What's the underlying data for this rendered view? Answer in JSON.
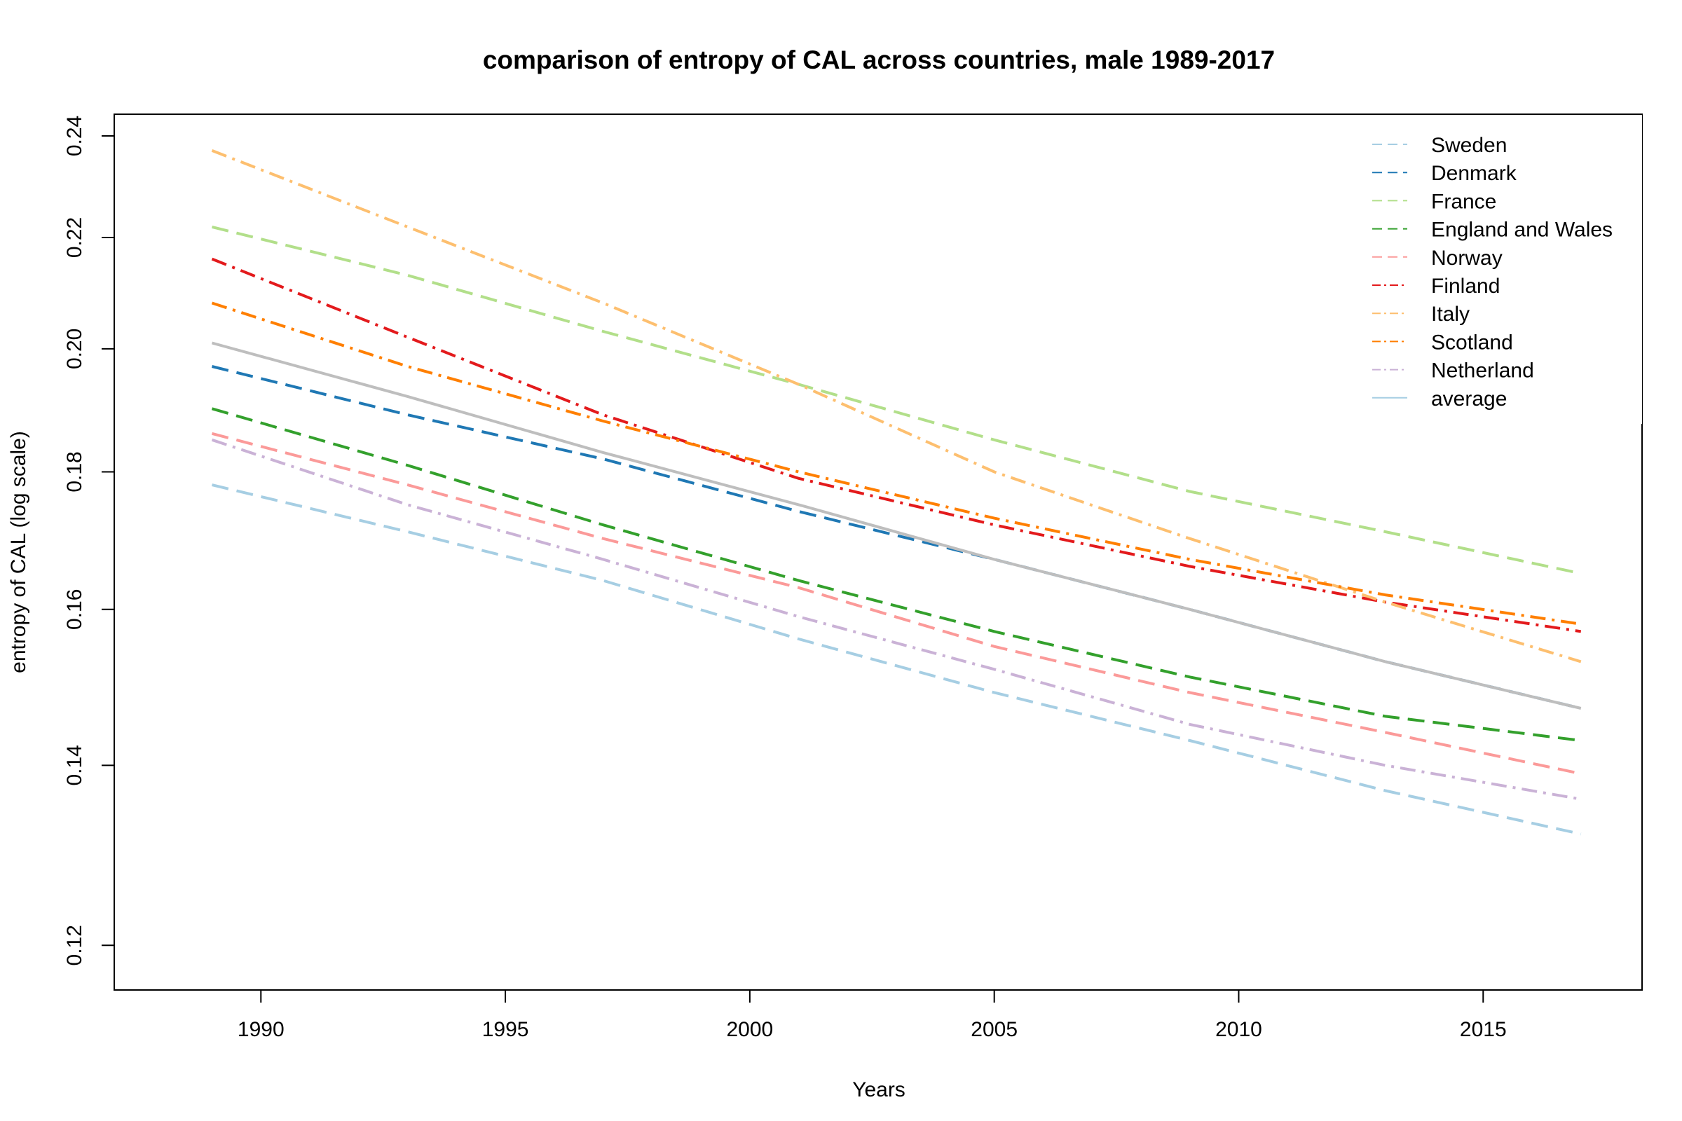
{
  "chart_data": {
    "type": "line",
    "title": "comparison of entropy of CAL across countries, male 1989-2017",
    "xlabel": "Years",
    "ylabel": "entropy of CAL (log scale)",
    "y_scale": "log",
    "xlim": [
      1987.0,
      2018.25
    ],
    "ylim": [
      0.1155,
      0.2445
    ],
    "x_ticks": [
      1990,
      1995,
      2000,
      2005,
      2010,
      2015
    ],
    "y_ticks": [
      0.12,
      0.14,
      0.16,
      0.18,
      0.2,
      0.22,
      0.24
    ],
    "y_tick_labels": [
      "0.12",
      "0.14",
      "0.16",
      "0.18",
      "0.20",
      "0.22",
      "0.24"
    ],
    "grid": false,
    "legend_position": "top-right",
    "x": [
      1989,
      1993,
      1997,
      2001,
      2005,
      2009,
      2013,
      2017
    ],
    "series": [
      {
        "name": "Sweden",
        "color": "#A6CEE3",
        "dash": "long-dash",
        "values": [
          0.178,
          0.171,
          0.164,
          0.156,
          0.149,
          0.143,
          0.137,
          0.132
        ]
      },
      {
        "name": "Denmark",
        "color": "#1F78B4",
        "dash": "long-dash",
        "values": [
          0.197,
          0.189,
          0.182,
          0.174,
          0.167,
          0.16,
          0.153,
          0.147
        ]
      },
      {
        "name": "France",
        "color": "#B2DF8A",
        "dash": "long-dash",
        "values": [
          0.222,
          0.213,
          0.203,
          0.194,
          0.185,
          0.177,
          0.171,
          0.165
        ]
      },
      {
        "name": "England and Wales",
        "color": "#33A02C",
        "dash": "long-dash",
        "values": [
          0.19,
          0.181,
          0.172,
          0.164,
          0.157,
          0.151,
          0.146,
          0.143
        ]
      },
      {
        "name": "Norway",
        "color": "#FB9A99",
        "dash": "long-dash",
        "values": [
          0.186,
          0.178,
          0.17,
          0.163,
          0.155,
          0.149,
          0.144,
          0.139
        ]
      },
      {
        "name": "Finland",
        "color": "#E31A1C",
        "dash": "dash-dot",
        "values": [
          0.216,
          0.202,
          0.189,
          0.179,
          0.172,
          0.166,
          0.161,
          0.157
        ]
      },
      {
        "name": "Italy",
        "color": "#FDBF6F",
        "dash": "dash-dot",
        "values": [
          0.237,
          0.222,
          0.208,
          0.194,
          0.18,
          0.17,
          0.161,
          0.153
        ]
      },
      {
        "name": "Scotland",
        "color": "#FF7F00",
        "dash": "dash-dot",
        "values": [
          0.208,
          0.197,
          0.188,
          0.18,
          0.173,
          0.167,
          0.162,
          0.158
        ]
      },
      {
        "name": "Netherland",
        "color": "#CAB2D6",
        "dash": "dash-dot",
        "values": [
          0.185,
          0.175,
          0.167,
          0.159,
          0.152,
          0.145,
          0.14,
          0.136
        ]
      },
      {
        "name": "average",
        "color": "#BEBEBE",
        "dash": "solid",
        "legend_color": "#A6CEE3",
        "values": [
          0.201,
          0.192,
          0.183,
          0.175,
          0.167,
          0.16,
          0.153,
          0.147
        ]
      }
    ]
  }
}
